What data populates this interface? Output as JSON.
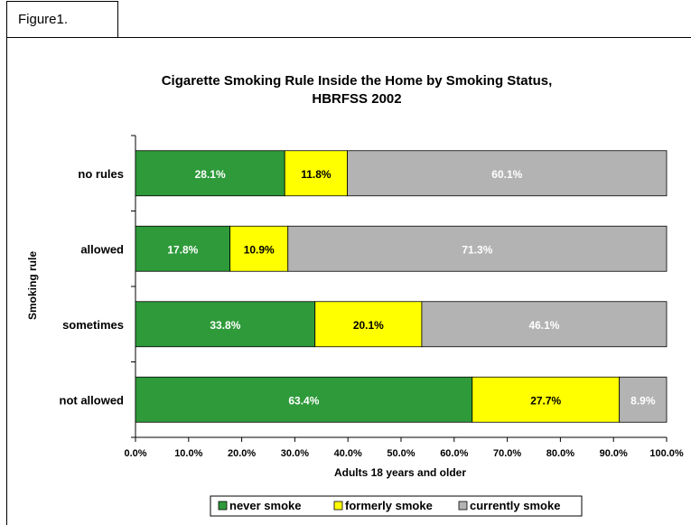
{
  "figure_label": "Figure1.",
  "chart_data": {
    "type": "bar",
    "orientation": "horizontal",
    "stacked": "percent",
    "title": "Cigarette Smoking Rule Inside the Home by Smoking Status, HBRFSS 2002",
    "title_lines": [
      "Cigarette Smoking Rule Inside the Home by Smoking Status,",
      "HBRFSS 2002"
    ],
    "xlabel": "Adults 18 years and older",
    "ylabel": "Smoking rule",
    "xlim": [
      0,
      100
    ],
    "x_ticks": [
      "0.0%",
      "10.0%",
      "20.0%",
      "30.0%",
      "40.0%",
      "50.0%",
      "60.0%",
      "70.0%",
      "80.0%",
      "90.0%",
      "100.0%"
    ],
    "categories": [
      "no rules",
      "allowed",
      "sometimes",
      "not allowed"
    ],
    "series": [
      {
        "name": "never smoke",
        "color": "#2e9a3a",
        "label_color": "#ffffff",
        "values": [
          28.1,
          17.8,
          33.8,
          63.4
        ],
        "labels": [
          "28.1%",
          "17.8%",
          "33.8%",
          "63.4%"
        ]
      },
      {
        "name": "formerly smoke",
        "color": "#ffff00",
        "label_color": "#000000",
        "values": [
          11.8,
          10.9,
          20.1,
          27.7
        ],
        "labels": [
          "11.8%",
          "10.9%",
          "20.1%",
          "27.7%"
        ]
      },
      {
        "name": "currently smoke",
        "color": "#b3b3b3",
        "label_color": "#ffffff",
        "values": [
          60.1,
          71.3,
          46.1,
          8.9
        ],
        "labels": [
          "60.1%",
          "71.3%",
          "46.1%",
          "8.9%"
        ]
      }
    ],
    "grid": false,
    "legend_position": "bottom"
  }
}
